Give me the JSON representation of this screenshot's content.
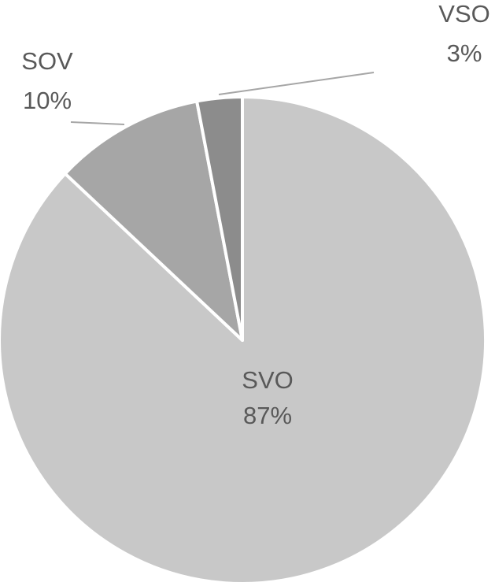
{
  "chart_data": {
    "type": "pie",
    "categories": [
      "SVO",
      "SOV",
      "VSO"
    ],
    "values": [
      87,
      10,
      3
    ],
    "value_labels": [
      "87%",
      "10%",
      "3%"
    ],
    "colors": [
      "#c8c8c8",
      "#a6a6a6",
      "#8c8c8c"
    ]
  }
}
